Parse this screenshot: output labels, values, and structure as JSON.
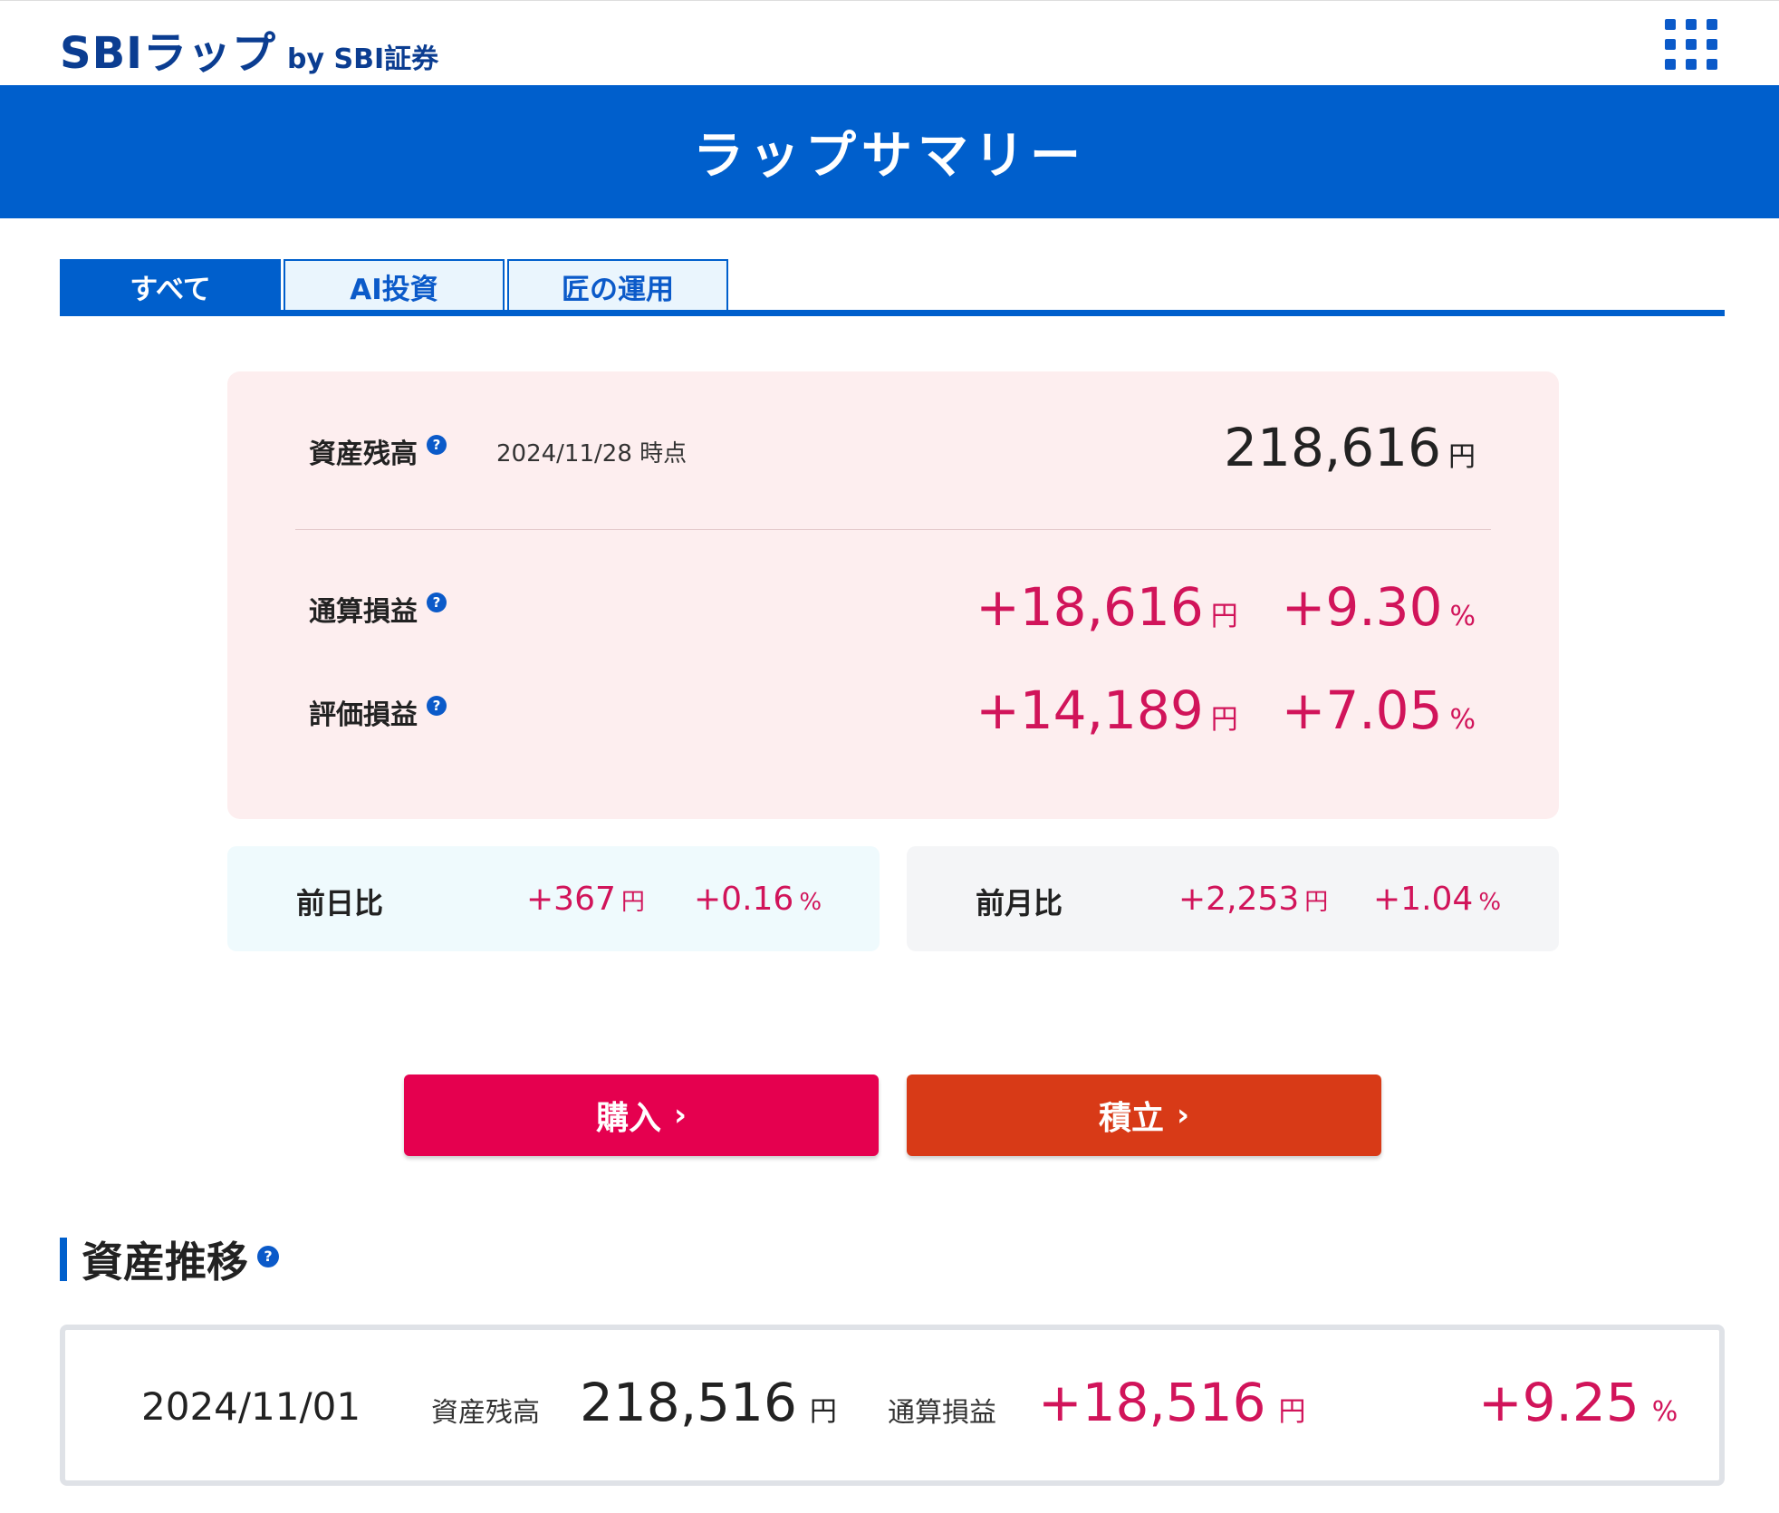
{
  "header": {
    "logo_main": "SBIラップ",
    "logo_sub": "by SBI証券"
  },
  "title": "ラップサマリー",
  "tabs": [
    {
      "label": "すべて",
      "active": true
    },
    {
      "label": "AI投資",
      "active": false
    },
    {
      "label": "匠の運用",
      "active": false
    }
  ],
  "summary": {
    "balance_label": "資産残高",
    "date_note": "2024/11/28 時点",
    "balance_value": "218,616",
    "yen": "円",
    "percent": "%",
    "total_pl": {
      "label": "通算損益",
      "value": "+18,616",
      "pct": "+9.30"
    },
    "eval_pl": {
      "label": "評価損益",
      "value": "+14,189",
      "pct": "+7.05"
    }
  },
  "compare": {
    "day": {
      "label": "前日比",
      "value": "+367",
      "pct": "+0.16"
    },
    "month": {
      "label": "前月比",
      "value": "+2,253",
      "pct": "+1.04"
    }
  },
  "buttons": {
    "buy": "購入",
    "reserve": "積立"
  },
  "history": {
    "section_title": "資産推移",
    "date": "2024/11/01",
    "balance_label": "資産残高",
    "balance_value": "218,516",
    "pl_label": "通算損益",
    "pl_value": "+18,516",
    "pct": "+9.25"
  },
  "colors": {
    "brand_blue": "#005fcc",
    "logo_navy": "#0b3d91",
    "profit_red": "#d1145a",
    "buy_button": "#e5004f",
    "reserve_button": "#d83a17",
    "summary_bg": "#fdeeef"
  },
  "icons": {
    "menu": "grid-menu-icon",
    "help": "question-circle-icon",
    "chevron": "chevron-right-icon"
  }
}
